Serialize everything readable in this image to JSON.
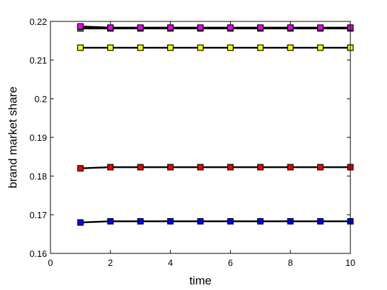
{
  "chart_data": {
    "type": "line",
    "xlabel": "time",
    "ylabel": "brand market share",
    "xlim": [
      0,
      10
    ],
    "ylim": [
      0.16,
      0.22
    ],
    "xticks": [
      0,
      2,
      4,
      6,
      8,
      10
    ],
    "xtick_labels": [
      "0",
      "2",
      "4",
      "6",
      "8",
      "10"
    ],
    "yticks": [
      0.16,
      0.17,
      0.18,
      0.19,
      0.2,
      0.21,
      0.22
    ],
    "ytick_labels": [
      "0.16",
      "0.17",
      "0.18",
      "0.19",
      "0.2",
      "0.21",
      "0.22"
    ],
    "grid": false,
    "legend": "none",
    "x": [
      1,
      2,
      3,
      4,
      5,
      6,
      7,
      8,
      9,
      10
    ],
    "series": [
      {
        "color": "#00aa00",
        "values": [
          0.2182,
          0.2182,
          0.2182,
          0.2182,
          0.2182,
          0.2182,
          0.2182,
          0.2182,
          0.2182,
          0.2182
        ]
      },
      {
        "color": "#ee00ee",
        "values": [
          0.2187,
          0.2184,
          0.2184,
          0.2184,
          0.2184,
          0.2184,
          0.2184,
          0.2184,
          0.2184,
          0.2184
        ]
      },
      {
        "color": "#ffff00",
        "values": [
          0.2132,
          0.2132,
          0.2132,
          0.2132,
          0.2132,
          0.2132,
          0.2132,
          0.2132,
          0.2132,
          0.2132
        ]
      },
      {
        "color": "#ee0000",
        "values": [
          0.182,
          0.1823,
          0.1823,
          0.1823,
          0.1823,
          0.1823,
          0.1823,
          0.1823,
          0.1823,
          0.1823
        ]
      },
      {
        "color": "#0000ee",
        "values": [
          0.168,
          0.1683,
          0.1683,
          0.1683,
          0.1683,
          0.1683,
          0.1683,
          0.1683,
          0.1683,
          0.1683
        ]
      }
    ]
  }
}
